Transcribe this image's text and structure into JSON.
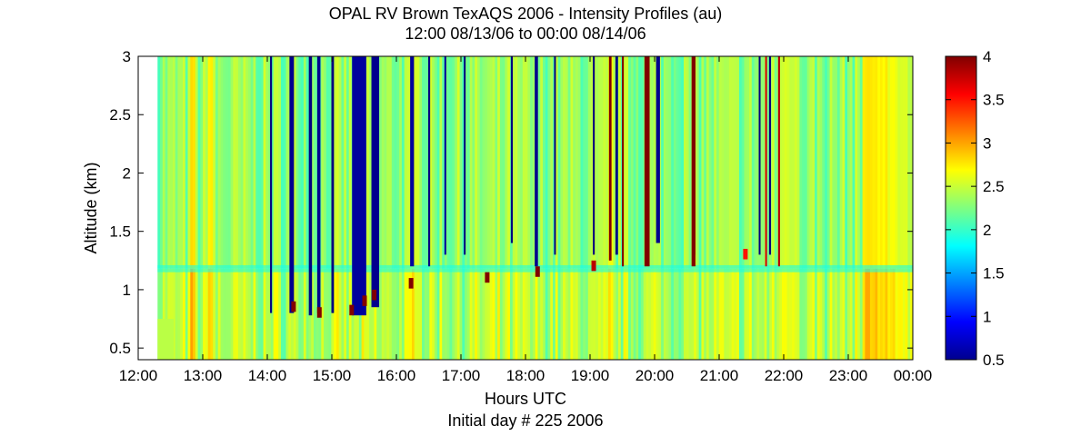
{
  "chart_data": {
    "type": "heatmap",
    "title": "OPAL RV Brown TexAQS 2006 - Intensity Profiles (au)",
    "subtitle": "12:00 08/13/06 to 00:00 08/14/06",
    "xlabel": "Hours UTC",
    "xlabel_sub": "Initial day # 225  2006",
    "ylabel": "Altitude (km)",
    "xlim": [
      12,
      24
    ],
    "ylim": [
      0.4,
      3.0
    ],
    "x_ticks": [
      12,
      13,
      14,
      15,
      16,
      17,
      18,
      19,
      20,
      21,
      22,
      23,
      24
    ],
    "x_tick_labels": [
      "12:00",
      "13:00",
      "14:00",
      "15:00",
      "16:00",
      "17:00",
      "18:00",
      "19:00",
      "20:00",
      "21:00",
      "22:00",
      "23:00",
      "00:00"
    ],
    "y_ticks": [
      0.5,
      1.0,
      1.5,
      2.0,
      2.5,
      3.0
    ],
    "y_tick_labels": [
      "0.5",
      "1",
      "1.5",
      "2",
      "2.5",
      "3"
    ],
    "colorbar": {
      "range": [
        0.5,
        4.0
      ],
      "ticks": [
        0.5,
        1.0,
        1.5,
        2.0,
        2.5,
        3.0,
        3.5,
        4.0
      ],
      "tick_labels": [
        "0.5",
        "1",
        "1.5",
        "2",
        "2.5",
        "3",
        "3.5",
        "4"
      ],
      "colormap": "jet"
    },
    "data_start_hour": 12.3,
    "boundary_layer_top_km": 1.18,
    "background_value": 2.3,
    "warm_bands": [
      {
        "x0": 12.78,
        "x1": 12.85,
        "value": 2.8
      },
      {
        "x0": 13.05,
        "x1": 13.12,
        "value": 2.75
      },
      {
        "x0": 16.2,
        "x1": 16.35,
        "value": 2.6
      },
      {
        "x0": 19.25,
        "x1": 19.35,
        "value": 2.6
      },
      {
        "x0": 21.9,
        "x1": 22.2,
        "value": 2.55
      },
      {
        "x0": 23.2,
        "x1": 23.6,
        "value": 2.75
      },
      {
        "x0": 23.6,
        "x1": 23.9,
        "value": 2.6
      }
    ],
    "cloud_columns": [
      {
        "x": 14.05,
        "base": 0.8,
        "w": 0.03,
        "value": 0.5
      },
      {
        "x": 14.35,
        "base": 0.8,
        "w": 0.07,
        "value": 0.55
      },
      {
        "x": 14.65,
        "base": 0.78,
        "w": 0.05,
        "value": 0.5
      },
      {
        "x": 14.78,
        "base": 0.8,
        "w": 0.05,
        "value": 0.55
      },
      {
        "x": 15.0,
        "base": 0.8,
        "w": 0.04,
        "value": 0.5
      },
      {
        "x": 15.32,
        "base": 0.78,
        "w": 0.22,
        "value": 0.6
      },
      {
        "x": 15.62,
        "base": 0.85,
        "w": 0.12,
        "value": 0.55
      },
      {
        "x": 16.22,
        "base": 1.2,
        "w": 0.06,
        "value": 0.6
      },
      {
        "x": 16.5,
        "base": 1.2,
        "w": 0.03,
        "value": 0.5
      },
      {
        "x": 16.75,
        "base": 1.3,
        "w": 0.03,
        "value": 0.6
      },
      {
        "x": 17.05,
        "base": 1.3,
        "w": 0.03,
        "value": 0.5
      },
      {
        "x": 17.78,
        "base": 1.4,
        "w": 0.03,
        "value": 0.5
      },
      {
        "x": 18.15,
        "base": 1.2,
        "w": 0.05,
        "value": 0.55
      },
      {
        "x": 18.45,
        "base": 1.3,
        "w": 0.02,
        "value": 0.5
      },
      {
        "x": 19.05,
        "base": 1.3,
        "w": 0.03,
        "value": 0.5
      },
      {
        "x": 19.4,
        "base": 1.3,
        "w": 0.04,
        "value": 0.5
      },
      {
        "x": 20.03,
        "base": 1.4,
        "w": 0.06,
        "value": 0.55
      },
      {
        "x": 20.6,
        "base": 1.3,
        "w": 0.04,
        "value": 0.5
      },
      {
        "x": 21.62,
        "base": 1.3,
        "w": 0.02,
        "value": 0.5
      },
      {
        "x": 21.78,
        "base": 1.3,
        "w": 0.03,
        "value": 0.5
      }
    ],
    "strong_columns": [
      {
        "x": 19.3,
        "base": 1.25,
        "w": 0.04,
        "value": 4.0
      },
      {
        "x": 19.5,
        "base": 1.2,
        "w": 0.03,
        "value": 4.0
      },
      {
        "x": 19.85,
        "base": 1.2,
        "w": 0.08,
        "value": 4.0
      },
      {
        "x": 20.58,
        "base": 1.2,
        "w": 0.06,
        "value": 4.0
      },
      {
        "x": 21.72,
        "base": 1.2,
        "w": 0.02,
        "value": 3.7
      },
      {
        "x": 21.92,
        "base": 1.2,
        "w": 0.03,
        "value": 3.8
      }
    ],
    "cloud_base_spikes": [
      {
        "x": 14.4,
        "alt": 0.85,
        "value": 4.0
      },
      {
        "x": 14.8,
        "alt": 0.8,
        "value": 4.0
      },
      {
        "x": 15.3,
        "alt": 0.82,
        "value": 4.0
      },
      {
        "x": 15.5,
        "alt": 0.9,
        "value": 4.0
      },
      {
        "x": 15.65,
        "alt": 0.95,
        "value": 4.0
      },
      {
        "x": 16.22,
        "alt": 1.05,
        "value": 4.0
      },
      {
        "x": 17.4,
        "alt": 1.1,
        "value": 4.0
      },
      {
        "x": 18.18,
        "alt": 1.15,
        "value": 4.0
      },
      {
        "x": 19.05,
        "alt": 1.2,
        "value": 3.8
      },
      {
        "x": 21.4,
        "alt": 1.3,
        "value": 3.5
      }
    ]
  }
}
